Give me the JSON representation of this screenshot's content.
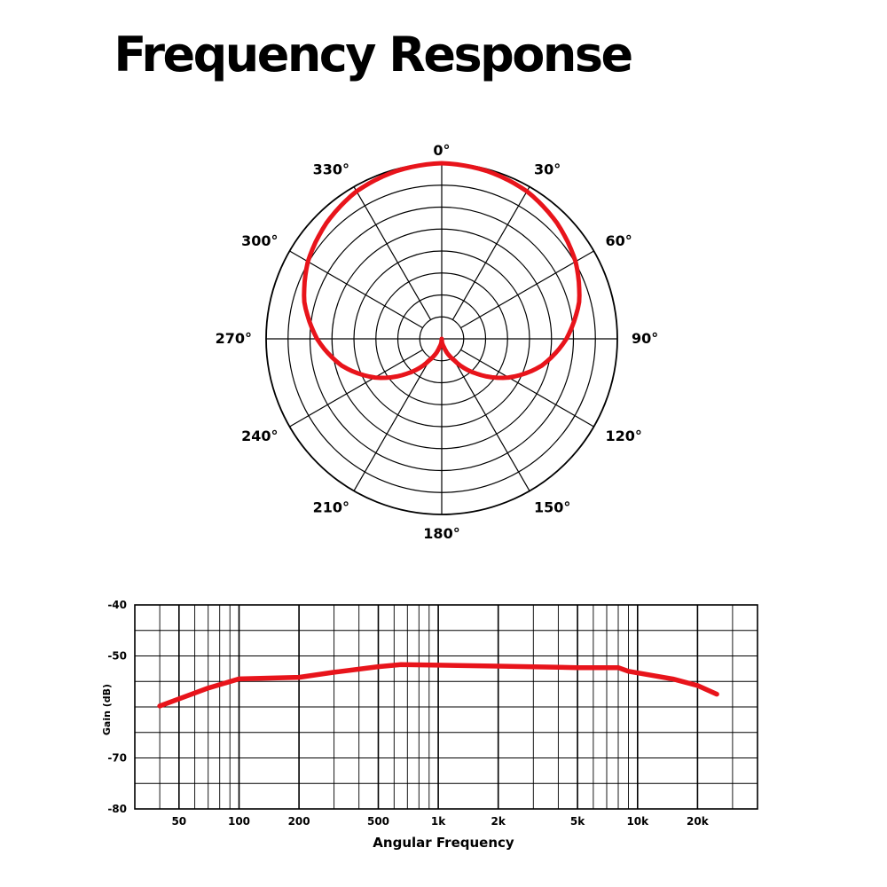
{
  "title": "Frequency Response",
  "chart_data": [
    {
      "type": "polar",
      "angle_labels": [
        "0°",
        "30°",
        "60°",
        "90°",
        "120°",
        "150°",
        "180°",
        "210°",
        "240°",
        "270°",
        "300°",
        "330°"
      ],
      "angles_deg": [
        0,
        30,
        60,
        90,
        120,
        150,
        180,
        210,
        240,
        270,
        300,
        330
      ],
      "rings": 8,
      "series": [
        {
          "angles_deg": [
            0,
            15,
            30,
            45,
            60,
            75,
            90,
            105,
            120,
            135,
            150,
            165,
            180,
            195,
            210,
            225,
            240,
            255,
            270,
            285,
            300,
            315,
            330,
            345
          ],
          "r_norm": [
            1.0,
            0.99,
            0.97,
            0.93,
            0.88,
            0.81,
            0.71,
            0.59,
            0.44,
            0.28,
            0.14,
            0.05,
            0.0,
            0.05,
            0.14,
            0.28,
            0.44,
            0.59,
            0.71,
            0.81,
            0.88,
            0.93,
            0.97,
            0.99
          ],
          "color": "#e8141b"
        }
      ]
    },
    {
      "type": "line",
      "xlabel": "Angular Frequency",
      "ylabel": "Gain (dB)",
      "xscale": "log",
      "xlim": [
        30,
        40000
      ],
      "ylim": [
        -80,
        -40
      ],
      "x_tick_values": [
        50,
        100,
        200,
        500,
        1000,
        2000,
        5000,
        10000,
        20000
      ],
      "x_tick_labels": [
        "50",
        "100",
        "200",
        "500",
        "1k",
        "2k",
        "5k",
        "10k",
        "20k"
      ],
      "y_tick_values": [
        -40,
        -50,
        -70,
        -80
      ],
      "y_tick_labels": [
        "-40",
        "-50",
        "-70",
        "-80"
      ],
      "grid": true,
      "series": [
        {
          "x": [
            40,
            70,
            100,
            200,
            300,
            500,
            650,
            1000,
            2000,
            5000,
            8000,
            9000,
            15000,
            20000,
            25000
          ],
          "y": [
            -59.8,
            -56.3,
            -54.5,
            -54.2,
            -53.2,
            -52.1,
            -51.7,
            -51.8,
            -52.0,
            -52.3,
            -52.3,
            -53.0,
            -54.5,
            -55.8,
            -57.5
          ],
          "color": "#e8141b"
        }
      ]
    }
  ]
}
